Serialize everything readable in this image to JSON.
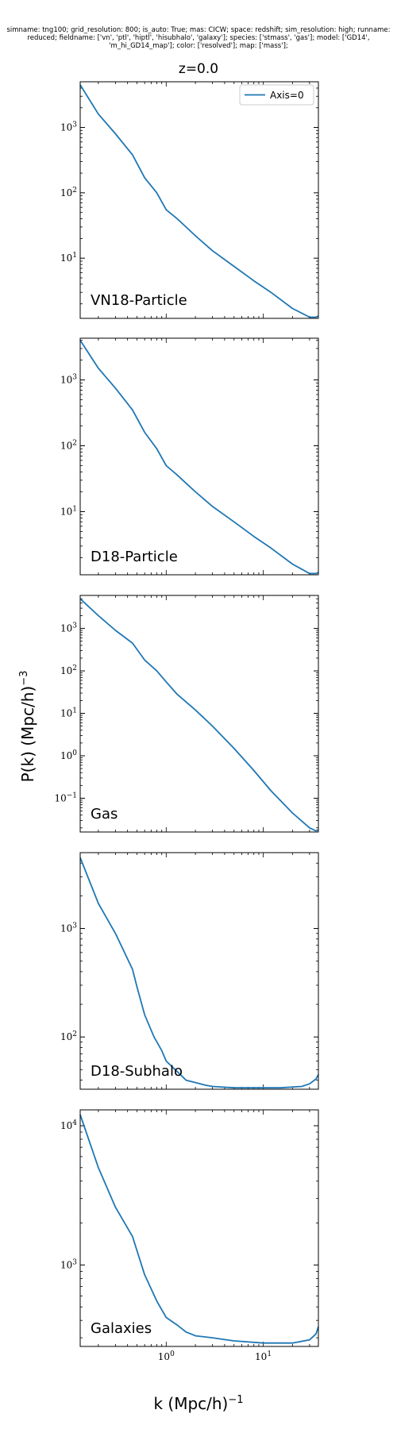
{
  "figure": {
    "suptitle_lines": [
      "simname: tng100; grid_resolution: 800; is_auto: True; mas: CICW; space: redshift; sim_resolution: high; runname:",
      "reduced; fieldname: ['vn', 'ptl', 'hiptl', 'hisubhalo', 'galaxy']; species: ['stmass', 'gas']; model: ['GD14',",
      "'m_hi_GD14_map']; color: ['resolved']; map: ['mass'];"
    ],
    "title": "z=0.0",
    "xlabel": "k (Mpc/h)",
    "xlabel_exp": "−1",
    "ylabel": "P(k) (Mpc/h)",
    "ylabel_exp": "−3",
    "line_color": "#1f77b4",
    "legend": {
      "label": "Axis=0",
      "placement": "top-right"
    }
  },
  "chart_data": [
    {
      "type": "line",
      "name": "VN18-Particle",
      "xscale": "log",
      "yscale": "log",
      "xlim": [
        0.13,
        37
      ],
      "ylim": [
        1.2,
        5000
      ],
      "yticks": [
        {
          "b": "10",
          "e": "1",
          "v": 10
        },
        {
          "b": "10",
          "e": "2",
          "v": 100
        },
        {
          "b": "10",
          "e": "3",
          "v": 1000
        }
      ],
      "x": [
        0.13,
        0.2,
        0.3,
        0.45,
        0.6,
        0.8,
        1.0,
        1.3,
        1.6,
        2.0,
        3.0,
        5.0,
        8.0,
        12.0,
        20.0,
        30.0,
        35.0,
        37.0
      ],
      "y": [
        4500,
        1600,
        800,
        380,
        170,
        100,
        55,
        40,
        30,
        22,
        13,
        7.5,
        4.5,
        3.0,
        1.7,
        1.25,
        1.25,
        1.3
      ]
    },
    {
      "type": "line",
      "name": "D18-Particle",
      "xscale": "log",
      "yscale": "log",
      "xlim": [
        0.13,
        37
      ],
      "ylim": [
        1.1,
        4300
      ],
      "yticks": [
        {
          "b": "10",
          "e": "1",
          "v": 10
        },
        {
          "b": "10",
          "e": "2",
          "v": 100
        },
        {
          "b": "10",
          "e": "3",
          "v": 1000
        }
      ],
      "x": [
        0.13,
        0.2,
        0.3,
        0.45,
        0.6,
        0.8,
        1.0,
        1.3,
        1.6,
        2.0,
        3.0,
        5.0,
        8.0,
        12.0,
        20.0,
        30.0,
        35.0,
        37.0
      ],
      "y": [
        4000,
        1500,
        750,
        350,
        160,
        90,
        50,
        36,
        27,
        20,
        12,
        7.0,
        4.2,
        2.8,
        1.6,
        1.15,
        1.15,
        1.2
      ]
    },
    {
      "type": "line",
      "name": "Gas",
      "xscale": "log",
      "yscale": "log",
      "xlim": [
        0.13,
        37
      ],
      "ylim": [
        0.016,
        6000
      ],
      "yticks": [
        {
          "b": "10",
          "e": "−1",
          "v": 0.1
        },
        {
          "b": "10",
          "e": "0",
          "v": 1
        },
        {
          "b": "10",
          "e": "1",
          "v": 10
        },
        {
          "b": "10",
          "e": "2",
          "v": 100
        },
        {
          "b": "10",
          "e": "3",
          "v": 1000
        }
      ],
      "x": [
        0.13,
        0.2,
        0.3,
        0.45,
        0.6,
        0.8,
        1.0,
        1.3,
        2.0,
        3.0,
        5.0,
        8.0,
        12.0,
        20.0,
        30.0,
        35.0,
        37.0
      ],
      "y": [
        5000,
        2000,
        900,
        450,
        180,
        100,
        55,
        28,
        12,
        5.0,
        1.5,
        0.45,
        0.15,
        0.045,
        0.02,
        0.017,
        0.018
      ]
    },
    {
      "type": "line",
      "name": "D18-Subhalo",
      "xscale": "log",
      "yscale": "log",
      "xlim": [
        0.13,
        37
      ],
      "ylim": [
        33,
        5000
      ],
      "yticks": [
        {
          "b": "10",
          "e": "2",
          "v": 100
        },
        {
          "b": "10",
          "e": "3",
          "v": 1000
        }
      ],
      "x": [
        0.13,
        0.2,
        0.3,
        0.45,
        0.5,
        0.6,
        0.75,
        0.9,
        1.0,
        1.3,
        1.6,
        2.0,
        2.5,
        3.0,
        5.0,
        8.0,
        15.0,
        25.0,
        30.0,
        35.0,
        37.0
      ],
      "y": [
        4500,
        1700,
        900,
        420,
        290,
        160,
        100,
        75,
        60,
        48,
        40,
        38,
        36,
        35,
        34,
        34,
        34,
        35,
        37,
        41,
        45
      ]
    },
    {
      "type": "line",
      "name": "Galaxies",
      "xscale": "log",
      "yscale": "log",
      "xlim": [
        0.13,
        37
      ],
      "ylim": [
        260,
        13000
      ],
      "yticks": [
        {
          "b": "10",
          "e": "3",
          "v": 1000
        },
        {
          "b": "10",
          "e": "4",
          "v": 10000
        }
      ],
      "x": [
        0.13,
        0.2,
        0.3,
        0.45,
        0.6,
        0.8,
        1.0,
        1.3,
        1.6,
        2.0,
        3.0,
        5.0,
        10.0,
        20.0,
        30.0,
        35.0,
        37.0
      ],
      "y": [
        12000,
        5000,
        2600,
        1600,
        850,
        550,
        420,
        370,
        330,
        310,
        300,
        285,
        275,
        275,
        290,
        320,
        360
      ]
    }
  ]
}
